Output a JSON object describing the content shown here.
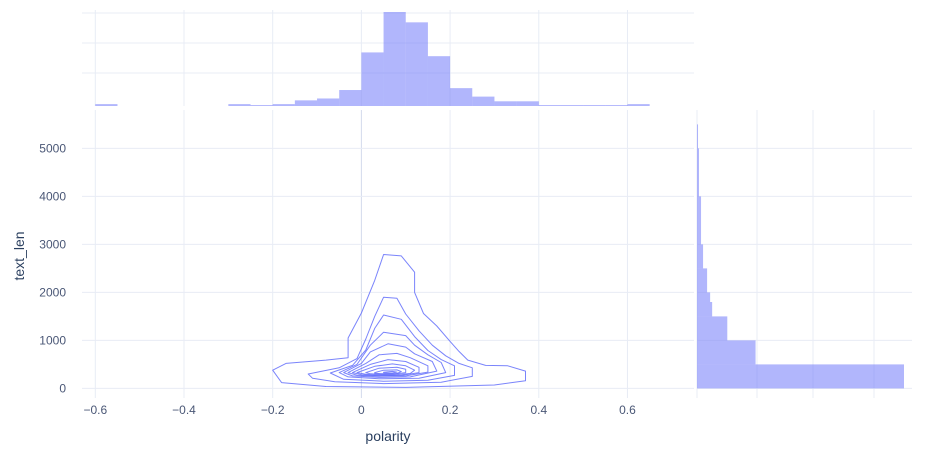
{
  "chart_data": {
    "type": "scatter",
    "subtype": "density_contour_with_marginal_histograms",
    "title": "",
    "xlabel": "polarity",
    "ylabel": "text_len",
    "xlim": [
      -0.63,
      0.75
    ],
    "ylim": [
      -200,
      5800
    ],
    "x_ticks": [
      -0.6,
      -0.4,
      -0.2,
      0,
      0.2,
      0.4,
      0.6
    ],
    "x_tick_labels": [
      "−0.6",
      "−0.4",
      "−0.2",
      "0",
      "0.2",
      "0.4",
      "0.6"
    ],
    "y_ticks": [
      0,
      1000,
      2000,
      3000,
      4000,
      5000
    ],
    "y_tick_labels": [
      "0",
      "1000",
      "2000",
      "3000",
      "4000",
      "5000"
    ],
    "grid": true,
    "color": "#636efa",
    "marginal_x_histogram": {
      "bin_edges": [
        -0.6,
        -0.55,
        -0.5,
        -0.45,
        -0.4,
        -0.35,
        -0.3,
        -0.25,
        -0.2,
        -0.15,
        -0.1,
        -0.05,
        0,
        0.05,
        0.1,
        0.15,
        0.2,
        0.25,
        0.3,
        0.35,
        0.4,
        0.45,
        0.5,
        0.55,
        0.6,
        0.65,
        0.7
      ],
      "counts": [
        2,
        0,
        0,
        0,
        0,
        0,
        2,
        1,
        2,
        6,
        8,
        17,
        57,
        100,
        89,
        53,
        19,
        10,
        5,
        5,
        1,
        1,
        1,
        1,
        2,
        0
      ]
    },
    "marginal_y_histogram": {
      "bin_edges": [
        0,
        500,
        1000,
        1500,
        1800,
        2000,
        2500,
        3000,
        4000,
        5000,
        5500
      ],
      "counts": [
        205,
        58,
        30,
        15,
        13,
        10,
        6,
        4,
        2,
        1
      ]
    },
    "density_contours": [
      {
        "level": 1,
        "points": [
          [
            -0.2,
            380
          ],
          [
            -0.17,
            520
          ],
          [
            -0.08,
            590
          ],
          [
            -0.03,
            640
          ],
          [
            -0.03,
            1050
          ],
          [
            0.0,
            1570
          ],
          [
            0.03,
            2250
          ],
          [
            0.05,
            2790
          ],
          [
            0.09,
            2760
          ],
          [
            0.12,
            2420
          ],
          [
            0.12,
            2000
          ],
          [
            0.14,
            1560
          ],
          [
            0.17,
            1300
          ],
          [
            0.2,
            980
          ],
          [
            0.22,
            770
          ],
          [
            0.24,
            590
          ],
          [
            0.28,
            480
          ],
          [
            0.33,
            470
          ],
          [
            0.37,
            360
          ],
          [
            0.37,
            160
          ],
          [
            0.3,
            70
          ],
          [
            0.1,
            20
          ],
          [
            -0.08,
            40
          ],
          [
            -0.18,
            120
          ]
        ]
      },
      {
        "level": 2,
        "points": [
          [
            -0.12,
            300
          ],
          [
            -0.05,
            430
          ],
          [
            -0.01,
            620
          ],
          [
            0.01,
            1030
          ],
          [
            0.03,
            1500
          ],
          [
            0.05,
            1900
          ],
          [
            0.08,
            1880
          ],
          [
            0.1,
            1550
          ],
          [
            0.13,
            1200
          ],
          [
            0.16,
            900
          ],
          [
            0.19,
            680
          ],
          [
            0.22,
            520
          ],
          [
            0.25,
            430
          ],
          [
            0.25,
            250
          ],
          [
            0.18,
            130
          ],
          [
            0.05,
            100
          ],
          [
            -0.06,
            140
          ],
          [
            -0.11,
            210
          ]
        ]
      },
      {
        "level": 3,
        "points": [
          [
            -0.07,
            320
          ],
          [
            -0.02,
            480
          ],
          [
            0.01,
            800
          ],
          [
            0.03,
            1250
          ],
          [
            0.05,
            1530
          ],
          [
            0.09,
            1440
          ],
          [
            0.12,
            1080
          ],
          [
            0.15,
            790
          ],
          [
            0.18,
            600
          ],
          [
            0.21,
            470
          ],
          [
            0.21,
            270
          ],
          [
            0.15,
            170
          ],
          [
            0.05,
            150
          ],
          [
            -0.04,
            190
          ]
        ]
      },
      {
        "level": 4,
        "points": [
          [
            -0.05,
            330
          ],
          [
            -0.01,
            500
          ],
          [
            0.02,
            900
          ],
          [
            0.05,
            1170
          ],
          [
            0.1,
            1100
          ],
          [
            0.12,
            900
          ],
          [
            0.15,
            700
          ],
          [
            0.18,
            540
          ],
          [
            0.19,
            330
          ],
          [
            0.13,
            210
          ],
          [
            0.04,
            200
          ],
          [
            -0.03,
            240
          ]
        ]
      },
      {
        "level": 5,
        "points": [
          [
            -0.04,
            330
          ],
          [
            0.0,
            520
          ],
          [
            0.02,
            760
          ],
          [
            0.06,
            930
          ],
          [
            0.1,
            860
          ],
          [
            0.12,
            720
          ],
          [
            0.16,
            560
          ],
          [
            0.17,
            360
          ],
          [
            0.11,
            240
          ],
          [
            0.04,
            230
          ],
          [
            -0.02,
            260
          ]
        ]
      },
      {
        "level": 6,
        "points": [
          [
            -0.03,
            330
          ],
          [
            0.01,
            520
          ],
          [
            0.04,
            700
          ],
          [
            0.08,
            730
          ],
          [
            0.11,
            640
          ],
          [
            0.15,
            470
          ],
          [
            0.15,
            340
          ],
          [
            0.1,
            260
          ],
          [
            0.04,
            255
          ],
          [
            -0.01,
            275
          ]
        ]
      },
      {
        "level": 7,
        "points": [
          [
            -0.02,
            330
          ],
          [
            0.02,
            500
          ],
          [
            0.06,
            600
          ],
          [
            0.1,
            560
          ],
          [
            0.13,
            440
          ],
          [
            0.13,
            330
          ],
          [
            0.09,
            270
          ],
          [
            0.04,
            265
          ],
          [
            0.0,
            285
          ]
        ]
      },
      {
        "level": 8,
        "points": [
          [
            -0.01,
            330
          ],
          [
            0.03,
            460
          ],
          [
            0.07,
            510
          ],
          [
            0.1,
            470
          ],
          [
            0.12,
            380
          ],
          [
            0.11,
            310
          ],
          [
            0.07,
            280
          ],
          [
            0.03,
            280
          ],
          [
            0.01,
            295
          ]
        ]
      },
      {
        "level": 9,
        "points": [
          [
            0.01,
            330
          ],
          [
            0.04,
            420
          ],
          [
            0.08,
            440
          ],
          [
            0.1,
            400
          ],
          [
            0.1,
            330
          ],
          [
            0.07,
            295
          ],
          [
            0.04,
            295
          ],
          [
            0.02,
            305
          ]
        ]
      },
      {
        "level": 10,
        "points": [
          [
            0.03,
            330
          ],
          [
            0.05,
            380
          ],
          [
            0.08,
            385
          ],
          [
            0.09,
            350
          ],
          [
            0.08,
            310
          ],
          [
            0.05,
            305
          ],
          [
            0.03,
            315
          ]
        ]
      },
      {
        "level": 11,
        "points": [
          [
            0.05,
            335
          ],
          [
            0.07,
            355
          ],
          [
            0.08,
            340
          ],
          [
            0.07,
            320
          ],
          [
            0.05,
            322
          ]
        ]
      }
    ]
  }
}
